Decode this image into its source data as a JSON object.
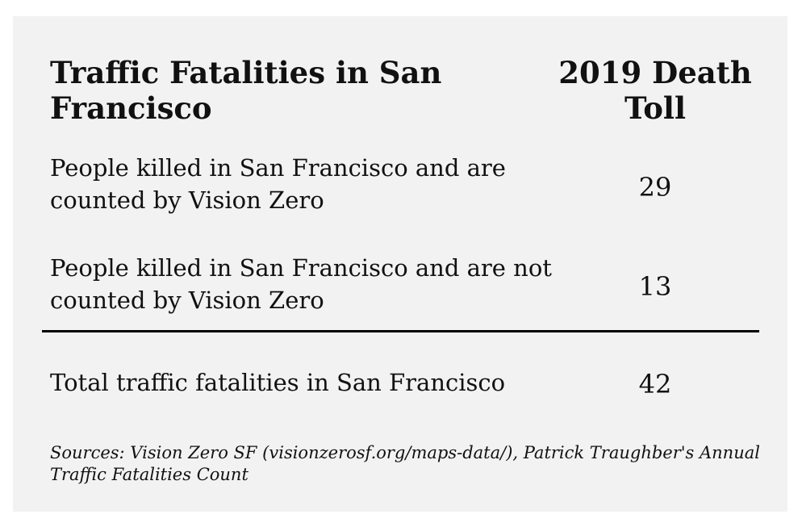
{
  "table": {
    "title": "Traffic Fatalities in San Francisco",
    "column_header": "2019 Death Toll",
    "rows": [
      {
        "label": "People killed in San Francisco and are counted by Vision Zero",
        "value": "29"
      },
      {
        "label": "People killed in San Francisco and are not counted by Vision Zero",
        "value": "13"
      }
    ],
    "total": {
      "label": "Total traffic fatalities in San Francisco",
      "value": "42"
    }
  },
  "sources": "Sources: Vision Zero SF (visionzerosf.org/maps-data/), Patrick Traughber's Annual Traffic Fatalities Count"
}
